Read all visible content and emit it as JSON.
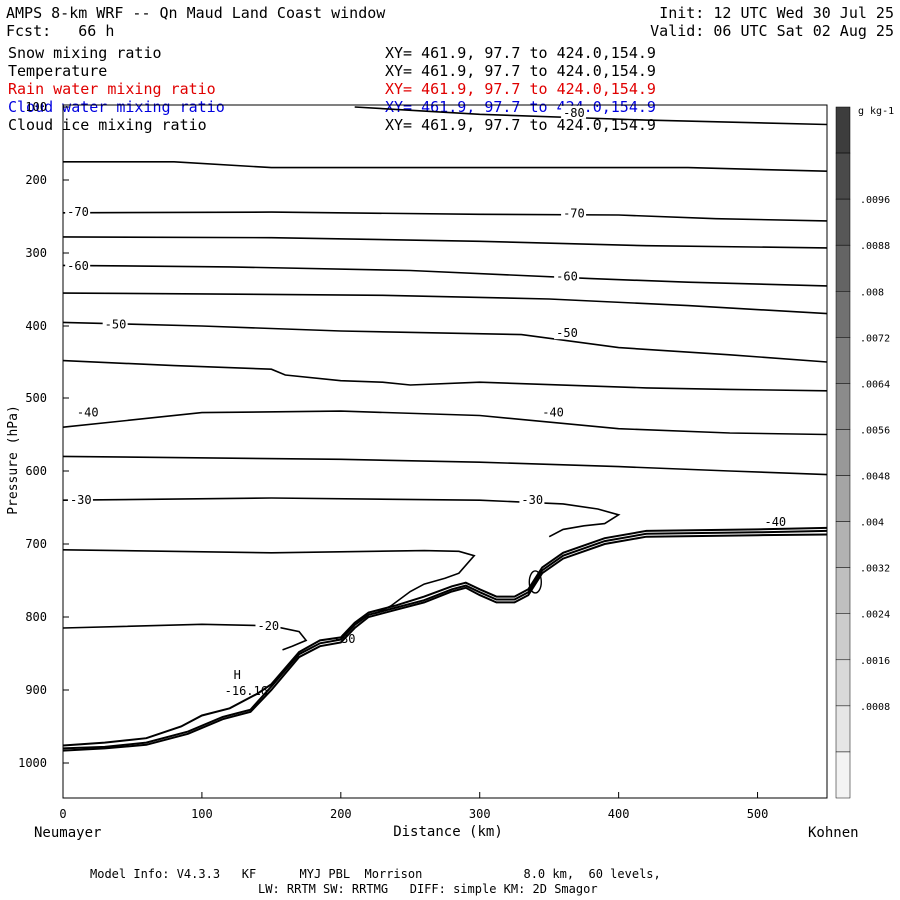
{
  "header": {
    "title": "AMPS 8-km WRF -- Qn Maud Land Coast window",
    "init": "Init: 12 UTC Wed 30 Jul 25",
    "fcst": "Fcst:   66 h",
    "valid": "Valid: 06 UTC Sat 02 Aug 25",
    "fields": [
      {
        "name": "Snow mixing ratio",
        "xy": "XY= 461.9, 97.7 to 424.0,154.9",
        "color": "#000000"
      },
      {
        "name": "Temperature",
        "xy": "XY= 461.9, 97.7 to 424.0,154.9",
        "color": "#000000"
      },
      {
        "name": "Rain water mixing ratio",
        "xy": "XY= 461.9, 97.7 to 424.0,154.9",
        "color": "#e00000"
      },
      {
        "name": "Cloud water mixing ratio",
        "xy": "XY= 461.9, 97.7 to 424.0,154.9",
        "color": "#0000e0"
      },
      {
        "name": "Cloud ice mixing ratio",
        "xy": "XY= 461.9, 97.7 to 424.0,154.9",
        "color": "#000000"
      }
    ]
  },
  "footer": {
    "line1": "Model Info: V4.3.3   KF      MYJ PBL  Morrison              8.0 km,  60 levels,",
    "line2": "LW: RRTM SW: RRTMG   DIFF: simple KM: 2D Smagor"
  },
  "chart_data": {
    "type": "line",
    "title": "",
    "xlabel": "Distance (km)",
    "ylabel": "Pressure (hPa)",
    "x_left_label": "Neumayer",
    "x_right_label": "Kohnen",
    "xlim": [
      0,
      550
    ],
    "ylim": [
      1050,
      100
    ],
    "x_ticks": [
      0,
      100,
      200,
      300,
      400,
      500
    ],
    "y_ticks": [
      100,
      200,
      300,
      400,
      500,
      600,
      700,
      800,
      900,
      1000
    ],
    "colorbar": {
      "unit": "g kg-1",
      "labels": [
        ".0096",
        ".0088",
        ".008",
        ".0072",
        ".0064",
        ".0056",
        ".0048",
        ".004",
        ".0032",
        ".0024",
        ".0016",
        ".0008"
      ],
      "colors": [
        "#3d3d3d",
        "#4a4a4a",
        "#575757",
        "#646464",
        "#717171",
        "#7e7e7e",
        "#8b8b8b",
        "#989898",
        "#a5a5a5",
        "#b2b2b2",
        "#bfbfbf",
        "#cccccc",
        "#d9d9d9",
        "#e6e6e6",
        "#f3f3f3"
      ]
    },
    "temperature_contours": [
      {
        "label": "-80",
        "points": [
          [
            210,
            100
          ],
          [
            300,
            110
          ],
          [
            420,
            118
          ],
          [
            550,
            124
          ]
        ]
      },
      {
        "label": "",
        "points": [
          [
            0,
            175
          ],
          [
            80,
            175
          ],
          [
            150,
            183
          ],
          [
            250,
            183
          ],
          [
            350,
            183
          ],
          [
            450,
            183
          ],
          [
            550,
            188
          ]
        ]
      },
      {
        "label": "-70",
        "points": [
          [
            0,
            245
          ],
          [
            150,
            244
          ],
          [
            300,
            247
          ],
          [
            400,
            248
          ],
          [
            470,
            253
          ],
          [
            550,
            256
          ]
        ]
      },
      {
        "label": "",
        "points": [
          [
            0,
            278
          ],
          [
            150,
            279
          ],
          [
            300,
            284
          ],
          [
            420,
            290
          ],
          [
            550,
            293
          ]
        ]
      },
      {
        "label": "-60",
        "points": [
          [
            0,
            317
          ],
          [
            120,
            319
          ],
          [
            250,
            324
          ],
          [
            380,
            335
          ],
          [
            450,
            340
          ],
          [
            550,
            345
          ]
        ]
      },
      {
        "label": "",
        "points": [
          [
            0,
            355
          ],
          [
            100,
            356
          ],
          [
            230,
            358
          ],
          [
            350,
            363
          ],
          [
            450,
            372
          ],
          [
            550,
            383
          ]
        ]
      },
      {
        "label": "-50",
        "points": [
          [
            0,
            395
          ],
          [
            100,
            400
          ],
          [
            200,
            407
          ],
          [
            330,
            412
          ],
          [
            400,
            430
          ],
          [
            480,
            440
          ],
          [
            550,
            450
          ]
        ]
      },
      {
        "label": "",
        "points": [
          [
            0,
            448
          ],
          [
            80,
            455
          ],
          [
            150,
            460
          ],
          [
            160,
            468
          ],
          [
            200,
            476
          ],
          [
            230,
            478
          ],
          [
            250,
            482
          ],
          [
            300,
            478
          ],
          [
            420,
            486
          ],
          [
            480,
            488
          ],
          [
            550,
            490
          ]
        ]
      },
      {
        "label": "-40",
        "points": [
          [
            0,
            540
          ],
          [
            100,
            520
          ],
          [
            200,
            518
          ],
          [
            300,
            524
          ],
          [
            400,
            542
          ],
          [
            480,
            548
          ],
          [
            550,
            550
          ]
        ]
      },
      {
        "label": "",
        "points": [
          [
            0,
            580
          ],
          [
            200,
            584
          ],
          [
            300,
            588
          ],
          [
            400,
            594
          ],
          [
            480,
            600
          ],
          [
            550,
            605
          ]
        ]
      },
      {
        "label": "-30",
        "points": [
          [
            0,
            640
          ],
          [
            150,
            637
          ],
          [
            300,
            640
          ],
          [
            360,
            645
          ],
          [
            385,
            652
          ],
          [
            400,
            660
          ],
          [
            390,
            672
          ],
          [
            375,
            675
          ],
          [
            360,
            680
          ],
          [
            350,
            690
          ]
        ]
      },
      {
        "label": "",
        "points": [
          [
            0,
            708
          ],
          [
            150,
            712
          ],
          [
            260,
            709
          ],
          [
            285,
            710
          ],
          [
            296,
            716
          ],
          [
            285,
            740
          ],
          [
            275,
            747
          ],
          [
            260,
            755
          ],
          [
            250,
            765
          ],
          [
            236,
            785
          ],
          [
            225,
            795
          ]
        ]
      },
      {
        "label": "-20",
        "points": [
          [
            0,
            815
          ],
          [
            100,
            810
          ],
          [
            150,
            812
          ],
          [
            170,
            820
          ],
          [
            175,
            832
          ],
          [
            165,
            840
          ],
          [
            158,
            845
          ]
        ]
      },
      {
        "label": "-16.16",
        "points": []
      }
    ],
    "terrain_lines": [
      {
        "points": [
          [
            0,
            983
          ],
          [
            30,
            980
          ],
          [
            60,
            975
          ],
          [
            90,
            960
          ],
          [
            115,
            940
          ],
          [
            135,
            930
          ],
          [
            150,
            900
          ],
          [
            170,
            855
          ],
          [
            185,
            840
          ],
          [
            200,
            835
          ],
          [
            210,
            815
          ],
          [
            220,
            800
          ],
          [
            240,
            790
          ],
          [
            260,
            780
          ],
          [
            280,
            765
          ],
          [
            290,
            760
          ],
          [
            300,
            770
          ],
          [
            312,
            780
          ],
          [
            325,
            780
          ],
          [
            335,
            770
          ],
          [
            345,
            740
          ],
          [
            360,
            720
          ],
          [
            390,
            700
          ],
          [
            420,
            690
          ],
          [
            500,
            688
          ],
          [
            550,
            687
          ]
        ]
      },
      {
        "points": [
          [
            0,
            980
          ],
          [
            30,
            978
          ],
          [
            60,
            972
          ],
          [
            90,
            957
          ],
          [
            115,
            937
          ],
          [
            135,
            927
          ],
          [
            150,
            895
          ],
          [
            170,
            851
          ],
          [
            185,
            836
          ],
          [
            200,
            831
          ],
          [
            210,
            811
          ],
          [
            220,
            797
          ],
          [
            240,
            787
          ],
          [
            260,
            777
          ],
          [
            280,
            762
          ],
          [
            290,
            757
          ],
          [
            300,
            766
          ],
          [
            312,
            776
          ],
          [
            325,
            776
          ],
          [
            335,
            766
          ],
          [
            345,
            736
          ],
          [
            360,
            716
          ],
          [
            390,
            696
          ],
          [
            420,
            686
          ],
          [
            500,
            684
          ],
          [
            550,
            682
          ]
        ]
      },
      {
        "points": [
          [
            0,
            976
          ],
          [
            30,
            972
          ],
          [
            60,
            966
          ],
          [
            85,
            950
          ],
          [
            100,
            935
          ],
          [
            120,
            925
          ],
          [
            140,
            905
          ],
          [
            150,
            892
          ],
          [
            170,
            848
          ],
          [
            185,
            832
          ],
          [
            200,
            828
          ],
          [
            210,
            808
          ],
          [
            220,
            794
          ],
          [
            240,
            784
          ],
          [
            260,
            772
          ],
          [
            280,
            758
          ],
          [
            290,
            753
          ],
          [
            300,
            762
          ],
          [
            312,
            772
          ],
          [
            325,
            772
          ],
          [
            335,
            762
          ],
          [
            345,
            732
          ],
          [
            360,
            712
          ],
          [
            390,
            692
          ],
          [
            420,
            682
          ],
          [
            500,
            680
          ],
          [
            550,
            678
          ]
        ]
      }
    ]
  }
}
